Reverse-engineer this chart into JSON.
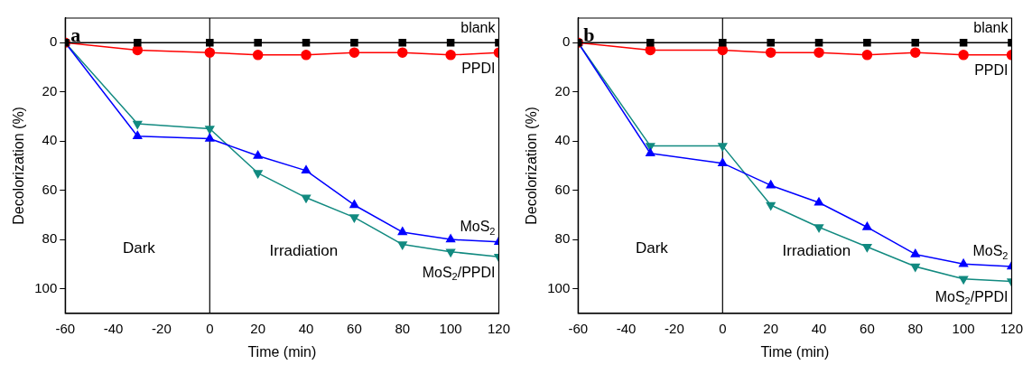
{
  "chart_data": [
    {
      "type": "line",
      "title": "a",
      "xlabel": "Time (min)",
      "ylabel": "Decolorization (%)",
      "x": [
        -60,
        -30,
        0,
        20,
        40,
        60,
        80,
        100,
        120
      ],
      "xlim": [
        -60,
        120
      ],
      "xticks": [
        -60,
        -40,
        -20,
        0,
        20,
        40,
        60,
        80,
        100,
        120
      ],
      "ylim": [
        110,
        -10
      ],
      "yticks": [
        0,
        20,
        40,
        60,
        80,
        100
      ],
      "grid": false,
      "legend": false,
      "ref_lines": [
        {
          "axis": "x",
          "value": 0,
          "color": "#000000"
        }
      ],
      "annotations": [
        "Dark",
        "Irradiation"
      ],
      "series": [
        {
          "name": "blank",
          "color": "#000000",
          "marker": "square",
          "values": [
            0,
            0,
            0,
            0,
            0,
            0,
            0,
            0,
            0
          ]
        },
        {
          "name": "PPDI",
          "color": "#ff0000",
          "marker": "circle",
          "values": [
            0,
            3,
            4,
            5,
            5,
            4,
            4,
            5,
            4
          ]
        },
        {
          "name": "MoS$_{2}$",
          "color": "#0000ff",
          "marker": "triangle",
          "values": [
            0,
            38,
            39,
            46,
            52,
            66,
            77,
            80,
            81
          ]
        },
        {
          "name": "MoS$_{2}$/PPDI",
          "color": "#128a80",
          "marker": "triangle-down",
          "values": [
            0,
            33,
            35,
            53,
            63,
            71,
            82,
            85,
            87
          ]
        }
      ]
    },
    {
      "type": "line",
      "title": "b",
      "xlabel": "Time (min)",
      "ylabel": "Decolorization (%)",
      "x": [
        -60,
        -30,
        0,
        20,
        40,
        60,
        80,
        100,
        120
      ],
      "xlim": [
        -60,
        120
      ],
      "xticks": [
        -60,
        -40,
        -20,
        0,
        20,
        40,
        60,
        80,
        100,
        120
      ],
      "ylim": [
        110,
        -10
      ],
      "yticks": [
        0,
        20,
        40,
        60,
        80,
        100
      ],
      "grid": false,
      "legend": false,
      "ref_lines": [
        {
          "axis": "x",
          "value": 0,
          "color": "#000000"
        }
      ],
      "annotations": [
        "Dark",
        "Irradiation"
      ],
      "series": [
        {
          "name": "blank",
          "color": "#000000",
          "marker": "square",
          "values": [
            0,
            0,
            0,
            0,
            0,
            0,
            0,
            0,
            0
          ]
        },
        {
          "name": "PPDI",
          "color": "#ff0000",
          "marker": "circle",
          "values": [
            0,
            3,
            3,
            4,
            4,
            5,
            4,
            5,
            5
          ]
        },
        {
          "name": "MoS$_{2}$",
          "color": "#0000ff",
          "marker": "triangle",
          "values": [
            0,
            45,
            49,
            58,
            65,
            75,
            86,
            90,
            91
          ]
        },
        {
          "name": "MoS$_{2}$/PPDI",
          "color": "#128a80",
          "marker": "triangle-down",
          "values": [
            0,
            42,
            42,
            66,
            75,
            83,
            91,
            96,
            97
          ]
        }
      ]
    }
  ]
}
